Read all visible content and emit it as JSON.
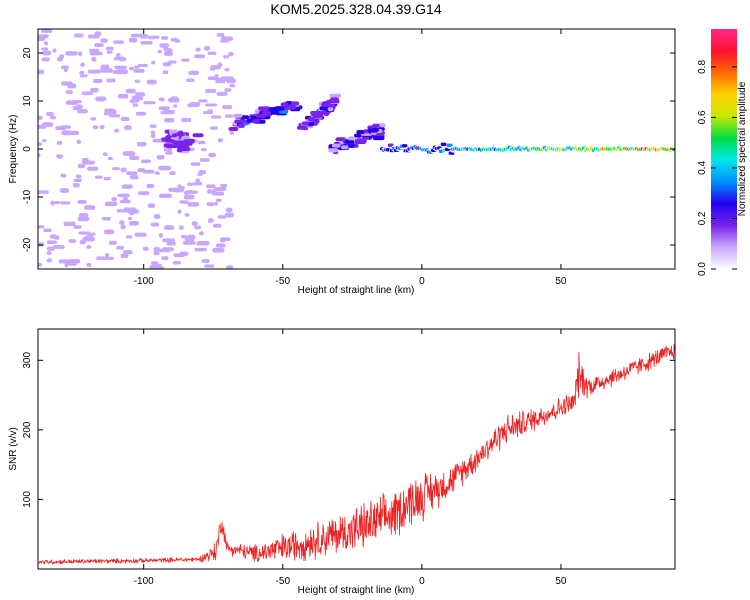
{
  "page": {
    "title": "KOM5.2025.328.04.39.G14"
  },
  "colors": {
    "snr_line": "#ee2222",
    "axis": "#000000",
    "colormap": [
      "#ffffff",
      "#c9a6ff",
      "#7a22ee",
      "#2200ee",
      "#0090ff",
      "#00e8e8",
      "#00dd44",
      "#c8e800",
      "#ffd000",
      "#ff6a00",
      "#ff1030",
      "#ff2a8a"
    ]
  },
  "chart_data": [
    {
      "type": "heatmap",
      "title": "KOM5.2025.328.04.39.G14",
      "xlabel": "Height of straight line (km)",
      "ylabel": "Frequency (Hz)",
      "xlim": [
        -138,
        91
      ],
      "ylim": [
        -25,
        25
      ],
      "xticks": [
        -100,
        -50,
        0,
        50
      ],
      "yticks": [
        -20,
        -10,
        0,
        10,
        20
      ],
      "colorbar": {
        "label": "Normalized spectral amplitude",
        "range": [
          0,
          0.95
        ],
        "ticks": [
          0.0,
          0.2,
          0.4,
          0.6,
          0.8
        ]
      },
      "features": [
        {
          "kind": "background-speckle",
          "x_range": [
            -138,
            -68
          ],
          "y_range": [
            -25,
            25
          ],
          "amplitude": 0.05
        },
        {
          "kind": "blob",
          "x": -87,
          "y": 2,
          "amplitude": 0.12
        },
        {
          "kind": "streak",
          "x_range": [
            -68,
            -45
          ],
          "y_range": [
            5,
            9
          ],
          "amplitude": 0.25
        },
        {
          "kind": "streak",
          "x_range": [
            -44,
            -31
          ],
          "y_range": [
            4,
            10
          ],
          "amplitude": 0.2
        },
        {
          "kind": "streak",
          "x_range": [
            -33,
            -14
          ],
          "y_range": [
            0,
            4
          ],
          "amplitude": 0.22
        },
        {
          "kind": "line",
          "x_range": [
            -14,
            91
          ],
          "y": 0,
          "amplitude_start": 0.3,
          "amplitude_end": 0.85
        }
      ]
    },
    {
      "type": "line",
      "xlabel": "Height of straight line (km)",
      "ylabel": "SNR (v/v)",
      "xlim": [
        -138,
        91
      ],
      "ylim": [
        0,
        345
      ],
      "xticks": [
        -100,
        -50,
        0,
        50
      ],
      "yticks": [
        100,
        200,
        300
      ],
      "series": [
        {
          "name": "SNR",
          "x": [
            -138,
            -120,
            -100,
            -80,
            -74,
            -72,
            -70,
            -60,
            -50,
            -40,
            -30,
            -20,
            -10,
            -5,
            0,
            10,
            20,
            30,
            40,
            50,
            55,
            56,
            60,
            70,
            80,
            91
          ],
          "y": [
            10,
            11,
            12,
            14,
            25,
            70,
            30,
            22,
            30,
            40,
            50,
            62,
            78,
            95,
            105,
            125,
            160,
            200,
            215,
            232,
            240,
            280,
            262,
            278,
            295,
            315
          ],
          "noise": [
            4,
            4,
            4,
            4,
            18,
            20,
            10,
            15,
            25,
            30,
            35,
            40,
            40,
            42,
            40,
            25,
            22,
            25,
            20,
            18,
            20,
            40,
            18,
            15,
            15,
            15
          ]
        }
      ]
    }
  ]
}
